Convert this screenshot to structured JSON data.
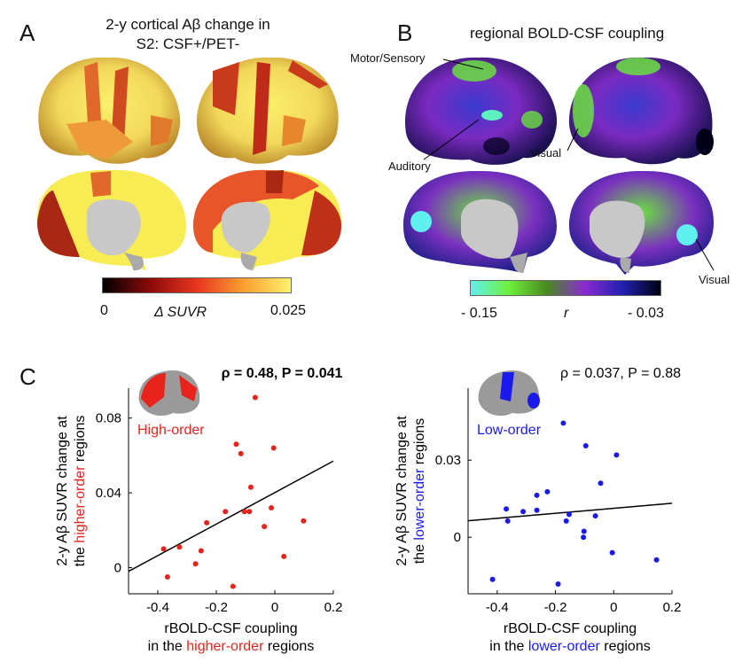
{
  "panel_a": {
    "label": "A",
    "title_line1": "2-y cortical Aβ change in",
    "title_line2": "S2: CSF+/PET-",
    "colorbar": {
      "min_label": "0",
      "max_label": "0.025",
      "quantity_label": "Δ SUVR",
      "colors": [
        "#000000",
        "#8b0a0a",
        "#e8351f",
        "#f8a030",
        "#fbf36a"
      ]
    }
  },
  "panel_b": {
    "label": "B",
    "title": "regional BOLD-CSF coupling",
    "annotations": [
      "Motor/Sensory",
      "Auditory",
      "Visual",
      "Visual"
    ],
    "colorbar": {
      "min_label": "- 0.15",
      "max_label": "- 0.03",
      "quantity_label": "r",
      "colors": [
        "#5ff0f0",
        "#6ff03a",
        "#4a8a20",
        "#8a2ad0",
        "#2020b0",
        "#000010"
      ]
    }
  },
  "panel_c": {
    "label": "C"
  },
  "chart_data": [
    {
      "type": "scatter",
      "title": "ρ = 0.48, P = 0.041",
      "inset_label": "High-order",
      "ylabel_parts": [
        "2-y Aβ SUVR change at",
        "the ",
        "higher-order",
        " regions"
      ],
      "xlabel_parts": [
        "rBOLD-CSF coupling",
        "in the ",
        "higher-order",
        " regions"
      ],
      "color": "#e8231b",
      "xlim": [
        -0.5,
        0.2
      ],
      "ylim": [
        -0.014,
        0.096
      ],
      "xticks": [
        -0.4,
        -0.2,
        0,
        0.2
      ],
      "xtick_labels": [
        "-0.4",
        "-0.2",
        "0",
        "0.2"
      ],
      "yticks": [
        0,
        0.04,
        0.08
      ],
      "ytick_labels": [
        "0",
        "0.04",
        "0.08"
      ],
      "fit_line": [
        [
          -0.5,
          -0.002
        ],
        [
          0.2,
          0.057
        ]
      ],
      "points": [
        [
          -0.067,
          0.091
        ],
        [
          -0.132,
          0.066
        ],
        [
          -0.116,
          0.061
        ],
        [
          -0.004,
          0.064
        ],
        [
          -0.082,
          0.043
        ],
        [
          -0.169,
          0.03
        ],
        [
          -0.104,
          0.03
        ],
        [
          -0.087,
          0.03
        ],
        [
          -0.012,
          0.032
        ],
        [
          -0.233,
          0.024
        ],
        [
          -0.036,
          0.022
        ],
        [
          0.098,
          0.025
        ],
        [
          -0.38,
          0.01
        ],
        [
          -0.326,
          0.011
        ],
        [
          -0.252,
          0.009
        ],
        [
          -0.271,
          0.002
        ],
        [
          0.031,
          0.006
        ],
        [
          -0.367,
          -0.005
        ],
        [
          -0.143,
          -0.01
        ]
      ]
    },
    {
      "type": "scatter",
      "title": "ρ = 0.037, P = 0.88",
      "inset_label": "Low-order",
      "ylabel_parts": [
        "2-y Aβ SUVR change at",
        "the ",
        "lower-order",
        " regions"
      ],
      "xlabel_parts": [
        "rBOLD-CSF coupling",
        "in the ",
        "lower-order",
        " regions"
      ],
      "color": "#1a1aee",
      "xlim": [
        -0.5,
        0.2
      ],
      "ylim": [
        -0.022,
        0.058
      ],
      "xticks": [
        -0.4,
        -0.2,
        0,
        0.2
      ],
      "xtick_labels": [
        "-0.4",
        "-0.2",
        "0",
        "0.2"
      ],
      "yticks": [
        0,
        0.03
      ],
      "ytick_labels": [
        "0",
        "0.03"
      ],
      "fit_line": [
        [
          -0.5,
          0.0064
        ],
        [
          0.2,
          0.0132
        ]
      ],
      "points": [
        [
          -0.173,
          0.0444
        ],
        [
          -0.096,
          0.0356
        ],
        [
          0.0095,
          0.032
        ],
        [
          -0.045,
          0.021
        ],
        [
          -0.228,
          0.0177
        ],
        [
          -0.264,
          0.0163
        ],
        [
          -0.369,
          0.011
        ],
        [
          -0.311,
          0.01
        ],
        [
          -0.264,
          0.0105
        ],
        [
          -0.364,
          0.0063
        ],
        [
          -0.153,
          0.0089
        ],
        [
          -0.163,
          0.0063
        ],
        [
          -0.063,
          0.0083
        ],
        [
          -0.102,
          0.0023
        ],
        [
          -0.104,
          0.0
        ],
        [
          -0.005,
          -0.006
        ],
        [
          0.147,
          -0.0088
        ],
        [
          -0.416,
          -0.0164
        ],
        [
          -0.191,
          -0.0182
        ]
      ]
    }
  ]
}
